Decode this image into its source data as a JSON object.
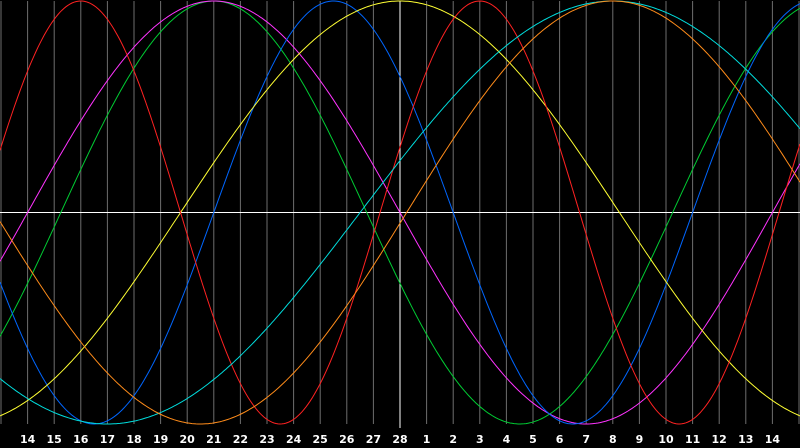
{
  "chart_data": {
    "type": "line",
    "title": "",
    "xlabel": "",
    "ylabel": "",
    "x_tick_labels": [
      "14",
      "15",
      "16",
      "17",
      "18",
      "19",
      "20",
      "21",
      "22",
      "23",
      "24",
      "25",
      "26",
      "27",
      "28",
      "1",
      "2",
      "3",
      "4",
      "5",
      "6",
      "7",
      "8",
      "9",
      "10",
      "11",
      "12",
      "13",
      "14"
    ],
    "ylim": [
      -1,
      1
    ],
    "grid": true,
    "colors": {
      "background": "#000000",
      "grid": "#6e6e6e",
      "axis": "#ffffff",
      "tick_text": "#ffffff"
    },
    "series": [
      {
        "color": "#00cc33",
        "period": 23,
        "peak_day": -7
      },
      {
        "color": "#ff33ff",
        "period": 28,
        "peak_day": -7
      },
      {
        "color": "#0066ff",
        "period": 18,
        "peak_day": -2.5
      },
      {
        "color": "#ffff33",
        "period": 33,
        "peak_day": 0
      },
      {
        "color": "#ff2222",
        "period": 15,
        "peak_day": 3
      },
      {
        "color": "#00dddd",
        "period": 38,
        "peak_day": 8
      },
      {
        "color": "#ff8c1a",
        "period": 31,
        "peak_day": 8
      }
    ]
  }
}
